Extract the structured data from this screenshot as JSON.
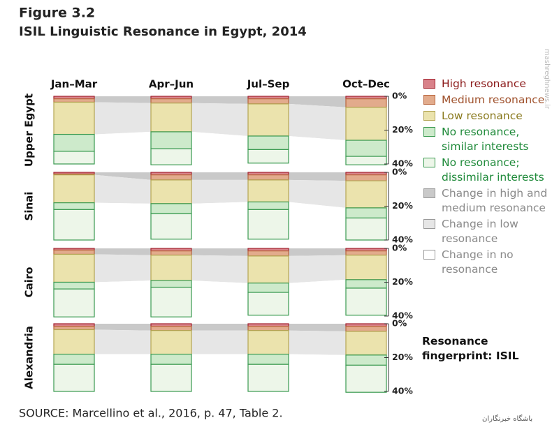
{
  "chart_data": {
    "type": "bar",
    "stacked": true,
    "title": "Figure 3.2",
    "subtitle": "ISIL Linguistic Resonance in Egypt, 2014",
    "categories": [
      "Jan–Mar",
      "Apr–Jun",
      "Jul–Sep",
      "Oct–Dec"
    ],
    "panels": [
      "Upper Egypt",
      "Sinai",
      "Cairo",
      "Alexandria"
    ],
    "ylim": [
      0,
      40
    ],
    "yticks": [
      {
        "value": 0,
        "label": "0%"
      },
      {
        "value": 20,
        "label": "20%"
      },
      {
        "value": 40,
        "label": "40%"
      }
    ],
    "series": [
      {
        "name": "High resonance",
        "color": "#d9828a",
        "stroke": "#a3232f",
        "label_color": "#8b1a1a",
        "values": [
          [
            1.5,
            1.5,
            1.5,
            1.5
          ],
          [
            1,
            1.5,
            1.5,
            1.5
          ],
          [
            1,
            1.5,
            1.5,
            1.5
          ],
          [
            1.5,
            1.5,
            1.5,
            1.5
          ]
        ]
      },
      {
        "name": "Medium resonance",
        "color": "#e2ab8c",
        "stroke": "#b8643c",
        "label_color": "#a0522d",
        "values": [
          [
            2,
            2.5,
            3,
            5
          ],
          [
            0.5,
            3,
            3,
            3.5
          ],
          [
            2.5,
            2.5,
            3,
            2.5
          ],
          [
            2,
            2.5,
            2.5,
            3
          ]
        ]
      },
      {
        "name": "Low resonance",
        "color": "#ebe3ad",
        "stroke": "#b3a552",
        "label_color": "#8a7a1e",
        "values": [
          [
            19,
            17,
            19,
            19.5
          ],
          [
            16.5,
            14,
            13,
            16
          ],
          [
            16.5,
            15,
            16,
            14.5
          ],
          [
            14.5,
            14,
            14,
            14
          ]
        ]
      },
      {
        "name": "No resonance, similar interests",
        "color": "#cdeacb",
        "stroke": "#3a9a50",
        "label_color": "#1f8a3a",
        "values": [
          [
            10,
            10,
            8,
            9.5
          ],
          [
            4,
            6,
            4.5,
            6
          ],
          [
            4,
            4,
            5.5,
            5
          ],
          [
            6,
            6,
            6,
            6
          ]
        ]
      },
      {
        "name": "No resonance; dissimilar interests",
        "color": "#edf6e9",
        "stroke": "#3a9a50",
        "label_color": "#1f8a3a",
        "values": [
          [
            7.5,
            9.5,
            8,
            5
          ],
          [
            18,
            15,
            17.5,
            13
          ],
          [
            16.5,
            17.5,
            13.5,
            16
          ],
          [
            16,
            16,
            16,
            16
          ]
        ]
      }
    ],
    "change_legend": [
      {
        "name": "Change in high and medium resonance",
        "color": "#c9c9c9",
        "label_color": "#8a8a8a"
      },
      {
        "name": "Change in low resonance",
        "color": "#e6e6e6",
        "label_color": "#8a8a8a"
      },
      {
        "name": "Change in no resonance",
        "color": "#ffffff",
        "label_color": "#8a8a8a"
      }
    ],
    "note": "Resonance fingerprint: ISIL",
    "source": "SOURCE: Marcellino et al., 2016, p. 47, Table 2.",
    "watermarks": [
      "mashreghnews.ir",
      "باشگاه خبرنگاران"
    ]
  }
}
